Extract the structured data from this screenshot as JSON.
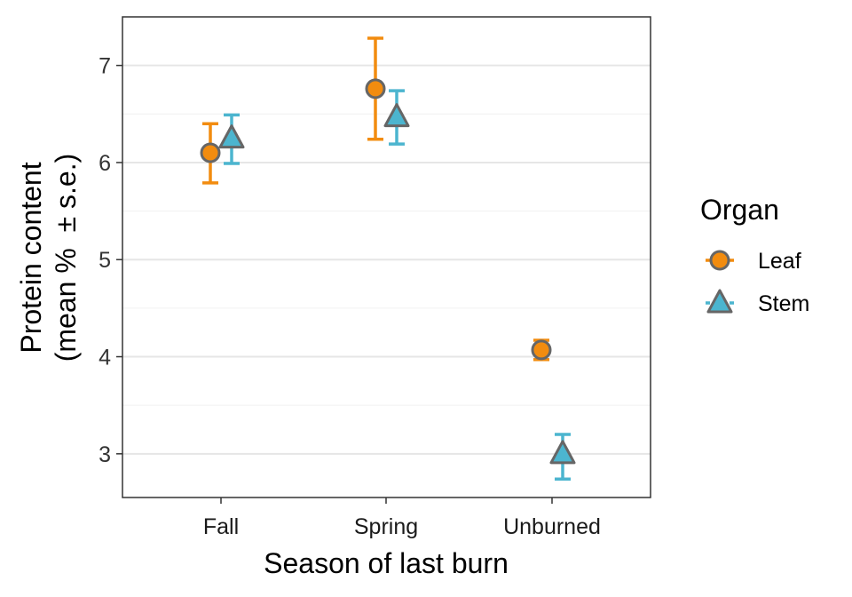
{
  "chart_data": {
    "type": "scatter",
    "xlabel": "Season of last burn",
    "ylabel_line1": "Protein content",
    "ylabel_line2": "(mean %  ± s.e.)",
    "categories": [
      "Fall",
      "Spring",
      "Unburned"
    ],
    "ylim": [
      2.55,
      7.5
    ],
    "yticks": [
      3,
      4,
      5,
      6,
      7
    ],
    "grid": true,
    "legend": {
      "title": "Organ",
      "position": "right"
    },
    "series": [
      {
        "name": "Leaf",
        "marker": "circle",
        "color": "#F28C0F",
        "mean": [
          6.1,
          6.76,
          4.07
        ],
        "lower": [
          5.79,
          6.24,
          3.97
        ],
        "upper": [
          6.4,
          7.28,
          4.17
        ]
      },
      {
        "name": "Stem",
        "marker": "triangle",
        "color": "#4CB5CF",
        "mean": [
          6.25,
          6.47,
          3.0
        ],
        "lower": [
          5.99,
          6.19,
          2.74
        ],
        "upper": [
          6.49,
          6.74,
          3.2
        ]
      }
    ],
    "marker_outline": "#666666"
  }
}
